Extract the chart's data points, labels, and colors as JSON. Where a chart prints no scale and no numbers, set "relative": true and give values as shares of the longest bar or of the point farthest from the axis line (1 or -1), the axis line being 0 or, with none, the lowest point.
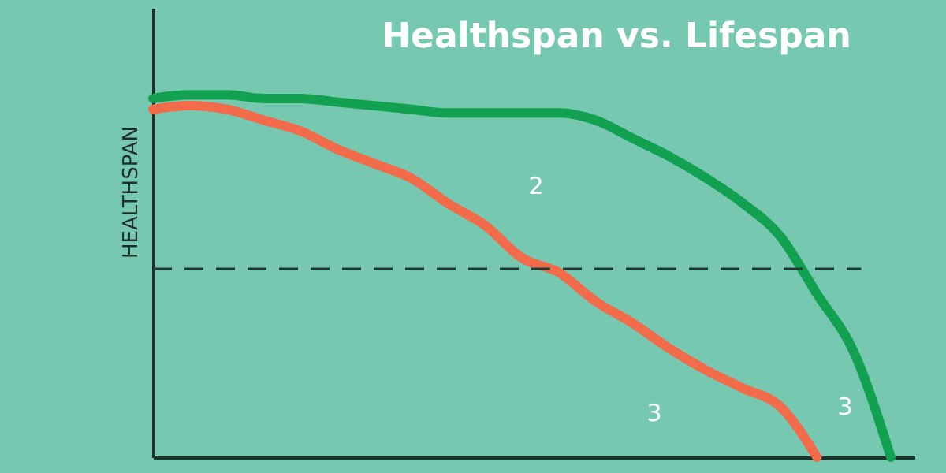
{
  "chart_data": {
    "type": "line",
    "title": "Healthspan vs. Lifespan",
    "ylabel": "HEALTHSPAN",
    "relative": true,
    "categories": [
      null,
      null,
      null,
      null,
      null,
      null,
      null,
      null,
      null,
      null,
      null,
      null,
      null,
      null,
      null,
      null,
      null,
      null,
      null,
      null,
      null
    ],
    "series": [
      {
        "color": "#12a150",
        "values": [
          0.99,
          1.0,
          1.0,
          0.99,
          0.99,
          0.98,
          0.97,
          0.96,
          0.95,
          0.95,
          0.95,
          0.95,
          0.93,
          0.88,
          0.83,
          0.77,
          0.7,
          0.61,
          0.45,
          0.29,
          0.0
        ]
      },
      {
        "color": "#f26b4a",
        "values": [
          0.96,
          0.97,
          0.96,
          0.93,
          0.9,
          0.85,
          0.81,
          0.77,
          0.7,
          0.64,
          0.55,
          0.51,
          0.43,
          0.37,
          0.3,
          0.24,
          0.19,
          0.14,
          0.0,
          null,
          null
        ]
      }
    ],
    "ref_lines": [
      {
        "axis": "y",
        "value": 0.52,
        "line_style": "dashed",
        "color": "#1f3a33"
      }
    ],
    "annotations": [
      "2",
      "3",
      "3"
    ],
    "marker": "none",
    "line_style": "solid"
  }
}
